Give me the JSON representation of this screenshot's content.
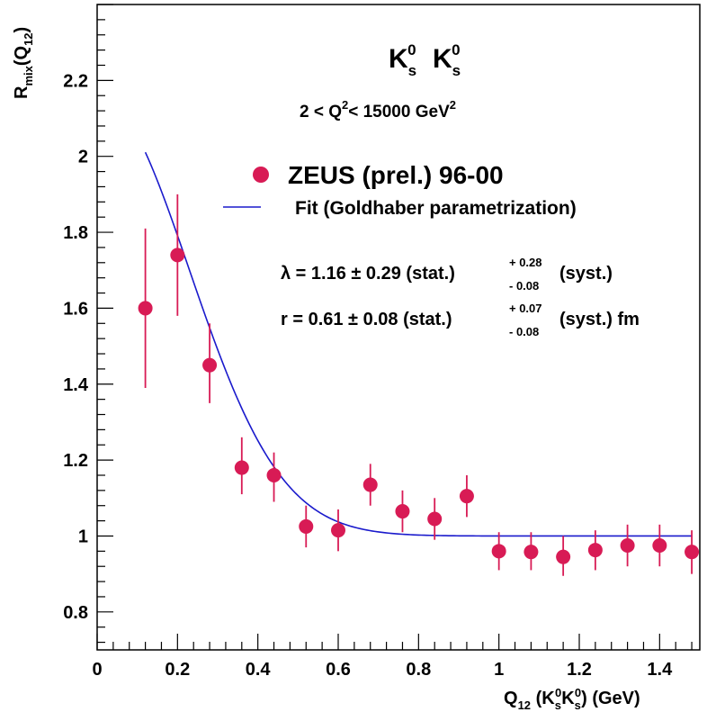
{
  "chart_data": {
    "type": "scatter",
    "title": "",
    "xlim": [
      0,
      1.5
    ],
    "ylim": [
      0.7,
      2.4
    ],
    "x_ticks": [
      "0",
      "0.2",
      "0.4",
      "0.6",
      "0.8",
      "1",
      "1.2",
      "1.4"
    ],
    "y_ticks": [
      "0.8",
      "1",
      "1.2",
      "1.4",
      "1.6",
      "1.8",
      "2",
      "2.2"
    ],
    "grid": false,
    "colors": {
      "data": "#d81b55",
      "fit": "#1a1acc",
      "axes": "#000000"
    },
    "labels": {
      "particle": {
        "base": "K",
        "sub": "s",
        "sup": "0"
      },
      "q2_range": {
        "prefix": "2 < Q",
        "sup": "2",
        "mid": "< 15000  GeV",
        "sup2": "2"
      },
      "legend_data": "ZEUS (prel.) 96-00",
      "legend_fit": "Fit (Goldhaber parametrization)",
      "lambda_line": {
        "main": "λ = 1.16  ± 0.29 (stat.)",
        "up": "+ 0.28",
        "down": "- 0.08",
        "tail": "(syst.)"
      },
      "r_line": {
        "main": "r = 0.61  ± 0.08 (stat.)",
        "up": "+ 0.07",
        "down": "- 0.08",
        "tail": "(syst.)  fm"
      },
      "ylabel": {
        "R": "R",
        "mix": "mix",
        "Q": "(Q",
        "n12": "12",
        "close": ")"
      },
      "xlabel": {
        "Q": "Q",
        "n12": "12",
        "K": "K",
        "s": "s",
        "zero": "0",
        "open": "(",
        "unit": ") (GeV)"
      }
    },
    "series": [
      {
        "name": "ZEUS (prel.) 96-00",
        "kind": "points",
        "points": [
          {
            "x": 0.12,
            "y": 1.6,
            "ylo": 1.39,
            "yhi": 1.81
          },
          {
            "x": 0.2,
            "y": 1.74,
            "ylo": 1.58,
            "yhi": 1.9
          },
          {
            "x": 0.28,
            "y": 1.45,
            "ylo": 1.35,
            "yhi": 1.56
          },
          {
            "x": 0.36,
            "y": 1.18,
            "ylo": 1.11,
            "yhi": 1.26
          },
          {
            "x": 0.44,
            "y": 1.16,
            "ylo": 1.09,
            "yhi": 1.22
          },
          {
            "x": 0.52,
            "y": 1.025,
            "ylo": 0.97,
            "yhi": 1.08
          },
          {
            "x": 0.6,
            "y": 1.015,
            "ylo": 0.96,
            "yhi": 1.07
          },
          {
            "x": 0.68,
            "y": 1.135,
            "ylo": 1.08,
            "yhi": 1.19
          },
          {
            "x": 0.76,
            "y": 1.065,
            "ylo": 1.01,
            "yhi": 1.12
          },
          {
            "x": 0.84,
            "y": 1.045,
            "ylo": 0.99,
            "yhi": 1.1
          },
          {
            "x": 0.92,
            "y": 1.105,
            "ylo": 1.05,
            "yhi": 1.16
          },
          {
            "x": 1.0,
            "y": 0.96,
            "ylo": 0.91,
            "yhi": 1.01
          },
          {
            "x": 1.08,
            "y": 0.958,
            "ylo": 0.91,
            "yhi": 1.01
          },
          {
            "x": 1.16,
            "y": 0.945,
            "ylo": 0.895,
            "yhi": 1.0
          },
          {
            "x": 1.24,
            "y": 0.963,
            "ylo": 0.91,
            "yhi": 1.015
          },
          {
            "x": 1.32,
            "y": 0.975,
            "ylo": 0.92,
            "yhi": 1.03
          },
          {
            "x": 1.4,
            "y": 0.975,
            "ylo": 0.92,
            "yhi": 1.03
          },
          {
            "x": 1.48,
            "y": 0.958,
            "ylo": 0.9,
            "yhi": 1.015
          }
        ]
      },
      {
        "name": "Fit (Goldhaber parametrization)",
        "kind": "curve",
        "lambda": 1.16,
        "r_fm": 0.61,
        "x_range": [
          0.12,
          1.48
        ]
      }
    ]
  }
}
